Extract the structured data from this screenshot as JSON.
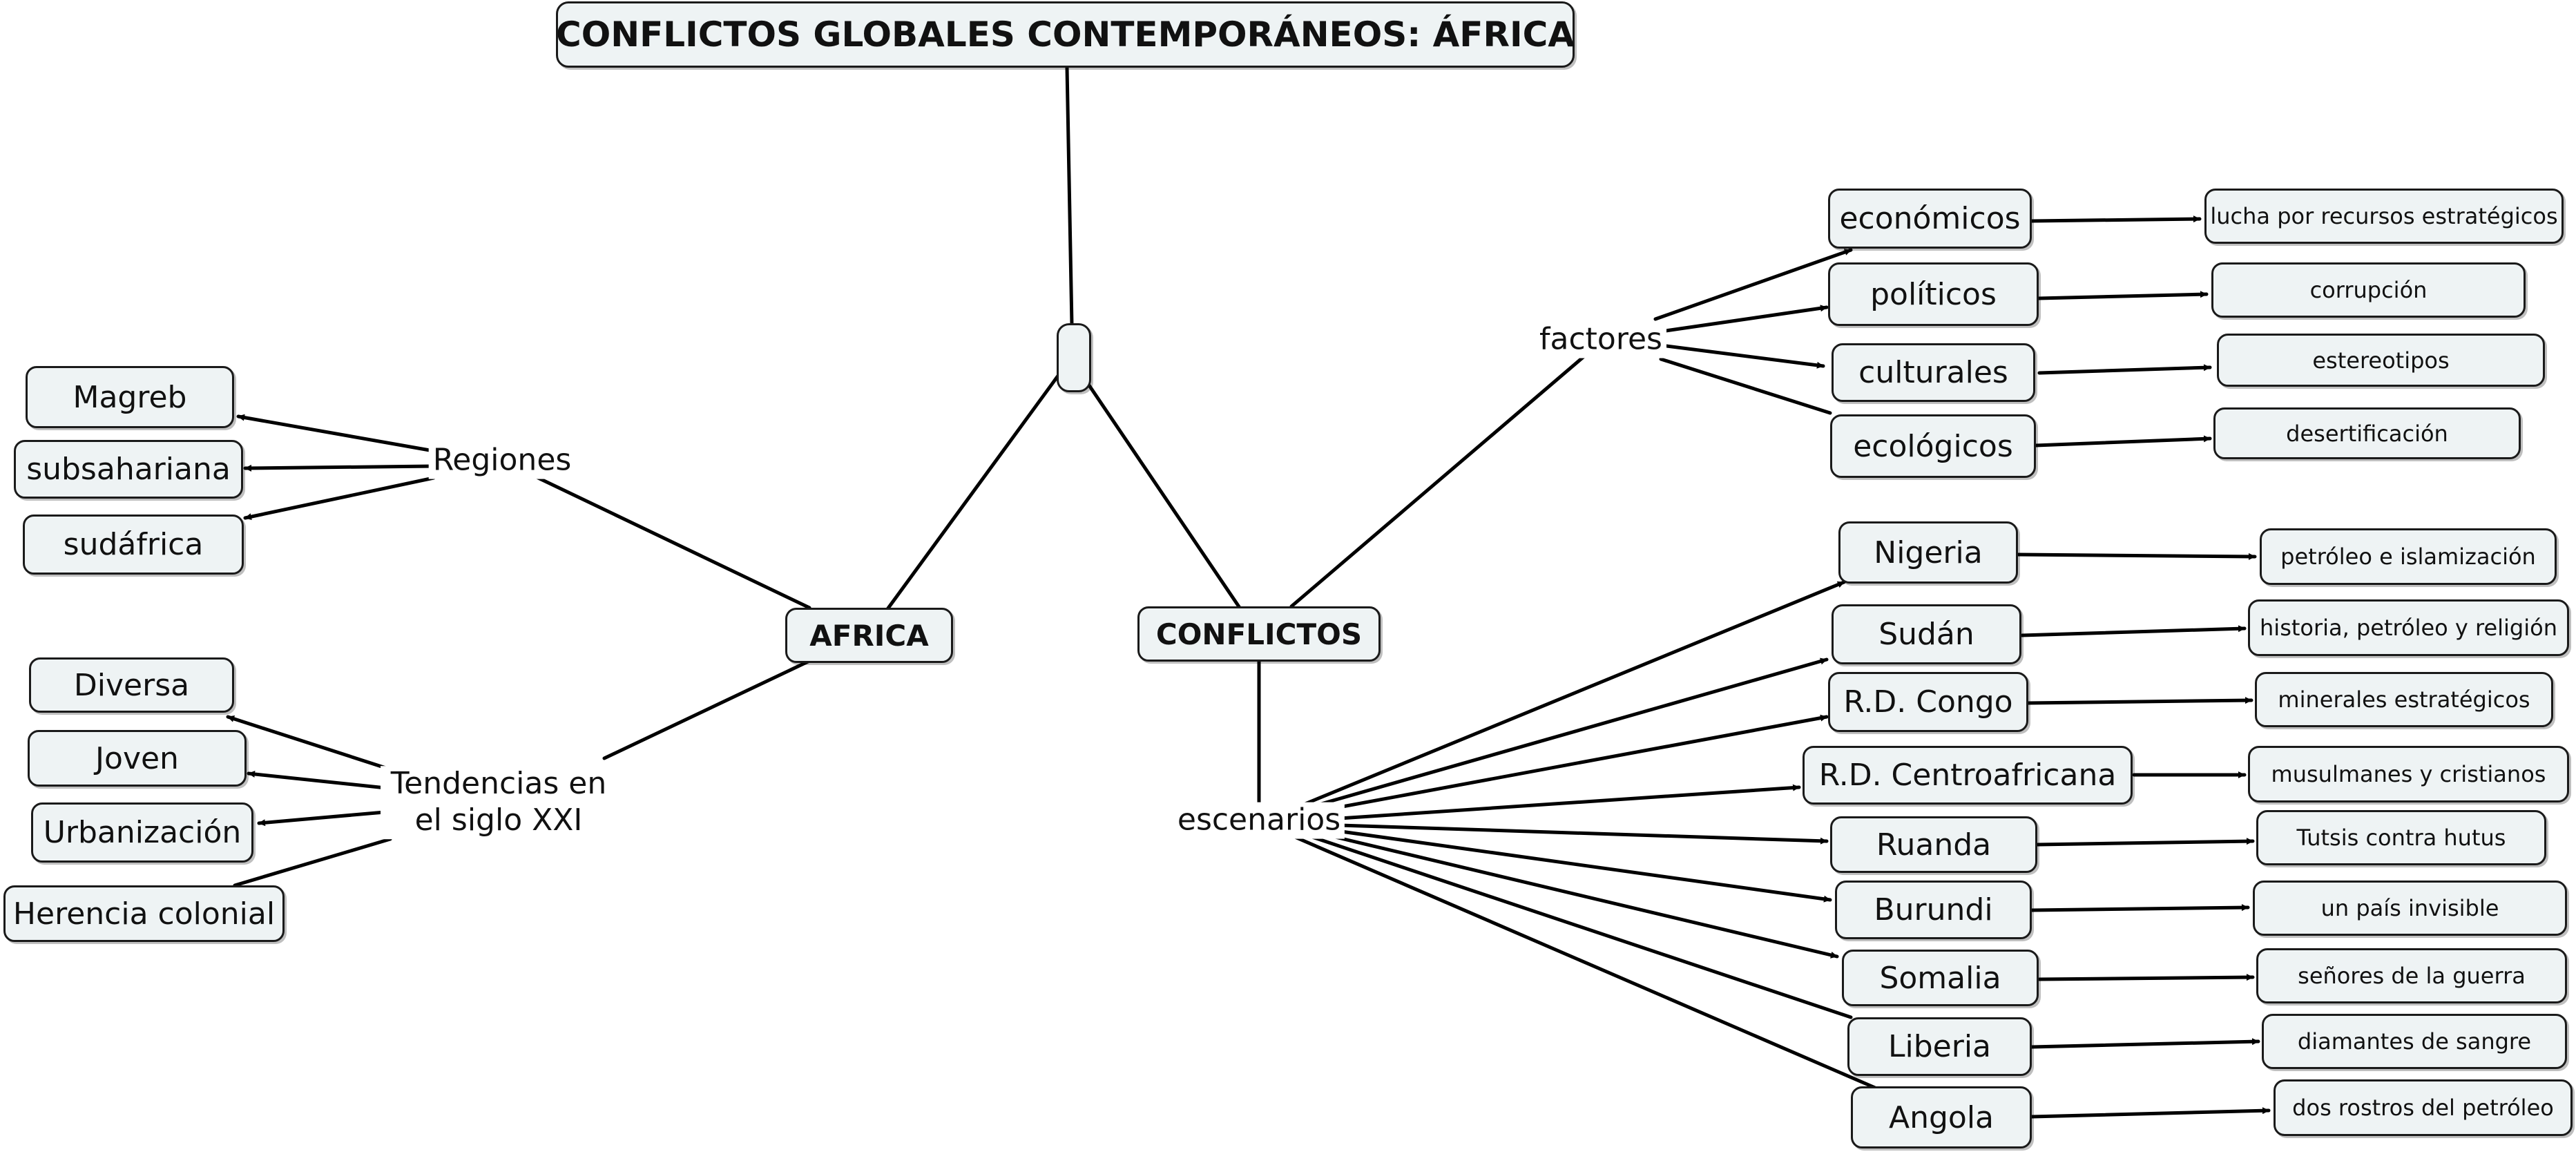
{
  "title": "CONFLICTOS GLOBALES CONTEMPORÁNEOS: ÁFRICA",
  "africa": {
    "label": "AFRICA",
    "regiones": {
      "label": "Regiones",
      "items": [
        "Magreb",
        "subsahariana",
        "sudáfrica"
      ]
    },
    "tendencias": {
      "label": "Tendencias en el siglo XXI",
      "items": [
        "Diversa",
        "Joven",
        "Urbanización",
        "Herencia colonial"
      ]
    }
  },
  "conflictos": {
    "label": "CONFLICTOS",
    "factores": {
      "label": "factores",
      "items": [
        {
          "name": "económicos",
          "detail": "lucha por recursos estratégicos"
        },
        {
          "name": "políticos",
          "detail": "corrupción"
        },
        {
          "name": "culturales",
          "detail": "estereotipos"
        },
        {
          "name": "ecológicos",
          "detail": "desertificación"
        }
      ]
    },
    "escenarios": {
      "label": "escenarios",
      "items": [
        {
          "name": "Nigeria",
          "detail": "petróleo e islamización"
        },
        {
          "name": "Sudán",
          "detail": "historia, petróleo y religión"
        },
        {
          "name": "R.D. Congo",
          "detail": "minerales estratégicos"
        },
        {
          "name": "R.D. Centroafricana",
          "detail": "musulmanes y cristianos"
        },
        {
          "name": "Ruanda",
          "detail": "Tutsis contra hutus"
        },
        {
          "name": "Burundi",
          "detail": "un país invisible"
        },
        {
          "name": "Somalia",
          "detail": "señores de la guerra"
        },
        {
          "name": "Liberia",
          "detail": "diamantes de sangre"
        },
        {
          "name": "Angola",
          "detail": "dos rostros del petróleo"
        }
      ]
    }
  }
}
